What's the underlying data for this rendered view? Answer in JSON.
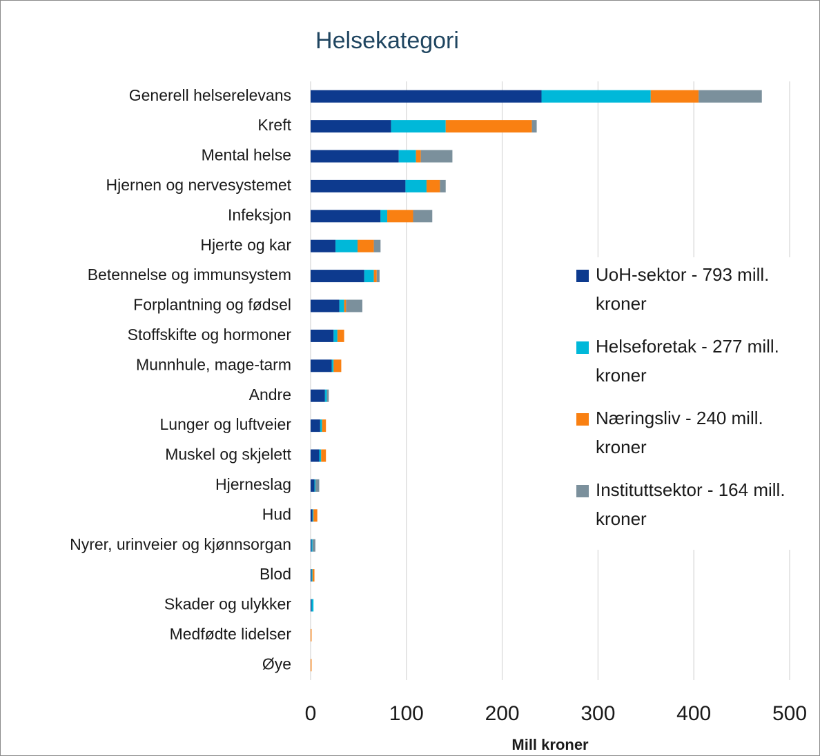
{
  "chart_data": {
    "type": "stacked-barh",
    "title": "Helsekategori",
    "xlabel": "Mill kroner",
    "categories": [
      "Generell helserelevans",
      "Kreft",
      "Mental helse",
      "Hjernen og nervesystemet",
      "Infeksjon",
      "Hjerte og kar",
      "Betennelse og immunsystem",
      "Forplantning og fødsel",
      "Stoffskifte og hormoner",
      "Munnhule, mage-tarm",
      "Andre",
      "Lunger og luftveier",
      "Muskel og skjelett",
      "Hjerneslag",
      "Hud",
      "Nyrer, urinveier og kjønnsorgan",
      "Blod",
      "Skader og ulykker",
      "Medfødte lidelser",
      "Øye"
    ],
    "series": [
      {
        "name": "UoH-sektor - 793 mill. kroner",
        "color": "#0d3a8e",
        "values": [
          241,
          84,
          92,
          99,
          73,
          26,
          56,
          30,
          24,
          22,
          15,
          10,
          9,
          4,
          2,
          1,
          1,
          1,
          0,
          0
        ]
      },
      {
        "name": "Helseforetak - 277 mill. kroner",
        "color": "#00b8d9",
        "values": [
          114,
          57,
          18,
          22,
          7,
          23,
          10,
          5,
          4,
          2,
          2,
          2,
          2,
          1,
          1,
          1,
          1,
          2,
          0,
          0
        ]
      },
      {
        "name": "Næringsliv - 240 mill. kroner",
        "color": "#f98012",
        "values": [
          50,
          90,
          5,
          14,
          27,
          17,
          3,
          2,
          7,
          8,
          0,
          4,
          5,
          0,
          4,
          0,
          2,
          0,
          1,
          1
        ]
      },
      {
        "name": "Instituttsektor - 164 mill. kroner",
        "color": "#7b909c",
        "values": [
          66,
          5,
          33,
          6,
          20,
          7,
          3,
          17,
          0,
          0,
          2,
          0,
          0,
          4,
          0,
          3,
          0,
          0,
          0,
          0
        ]
      }
    ],
    "xlim": [
      0,
      500
    ],
    "xticks": [
      0,
      100,
      200,
      300,
      400,
      500
    ],
    "grid": true
  }
}
